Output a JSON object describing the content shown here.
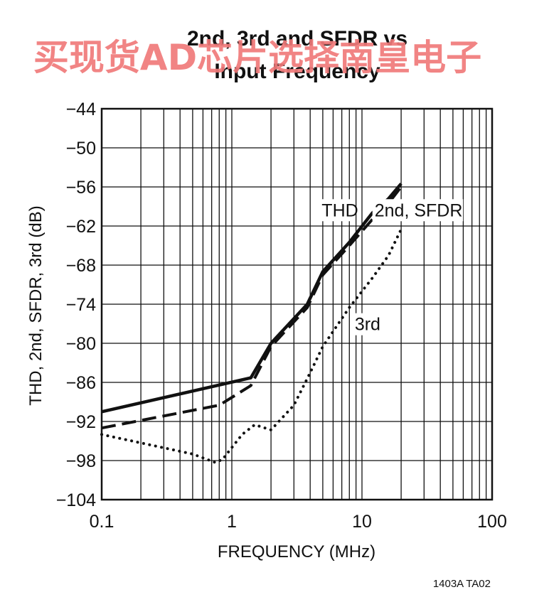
{
  "chart_data": {
    "type": "line",
    "title_lines": [
      "2nd, 3rd and SFDR vs",
      "Input Frequency"
    ],
    "xlabel": "FREQUENCY (MHz)",
    "ylabel": "THD, 2nd, SFDR, 3rd (dB)",
    "x_scale": "log",
    "xlim": [
      0.1,
      100
    ],
    "ylim": [
      -104,
      -44
    ],
    "x_ticks": [
      0.1,
      1,
      10,
      100
    ],
    "x_tick_labels": [
      "0.1",
      "1",
      "10",
      "100"
    ],
    "y_ticks": [
      -44,
      -50,
      -56,
      -62,
      -68,
      -74,
      -80,
      -86,
      -92,
      -98,
      -104
    ],
    "y_tick_labels": [
      "−44",
      "−50",
      "−56",
      "−62",
      "−68",
      "−74",
      "−80",
      "−86",
      "−92",
      "−98",
      "−104"
    ],
    "grid": true,
    "figure_code": "1403A TA02",
    "series": [
      {
        "name": "THD",
        "style": "solid",
        "x": [
          0.1,
          1.4,
          2.0,
          3.8,
          5.0,
          8.0,
          12.0,
          16.0,
          20.0
        ],
        "y": [
          -90.5,
          -85.3,
          -80.0,
          -74.0,
          -69.0,
          -64.5,
          -60.0,
          -57.8,
          -55.5
        ]
      },
      {
        "name": "2nd, SFDR",
        "style": "dashed",
        "x": [
          0.1,
          0.8,
          1.4,
          2.0,
          3.8,
          5.0,
          8.0,
          12.0,
          16.0,
          20.0
        ],
        "y": [
          -93.0,
          -89.5,
          -86.5,
          -80.5,
          -74.5,
          -69.5,
          -65.0,
          -61.0,
          -58.5,
          -56.0
        ]
      },
      {
        "name": "3rd",
        "style": "dotted",
        "x": [
          0.1,
          0.5,
          0.75,
          0.85,
          1.2,
          1.5,
          2.0,
          3.0,
          4.0,
          5.0,
          8.0,
          12.0,
          16.0,
          20.0
        ],
        "y": [
          -94.0,
          -97.0,
          -98.3,
          -97.8,
          -94.0,
          -92.5,
          -93.3,
          -89.5,
          -84.5,
          -80.5,
          -74.5,
          -70.0,
          -66.5,
          -62.5
        ]
      }
    ],
    "series_labels": [
      {
        "text": "THD",
        "x": 4.9,
        "y": -60.5
      },
      {
        "text": "2nd, SFDR",
        "x": 12.5,
        "y": -60.5
      },
      {
        "text": "3rd",
        "x": 8.8,
        "y": -78.0
      }
    ]
  },
  "watermark": "买现货AD芯片选择南皇电子",
  "colors": {
    "ink": "#111111",
    "watermark": "#f07a7a",
    "background": "#ffffff"
  }
}
